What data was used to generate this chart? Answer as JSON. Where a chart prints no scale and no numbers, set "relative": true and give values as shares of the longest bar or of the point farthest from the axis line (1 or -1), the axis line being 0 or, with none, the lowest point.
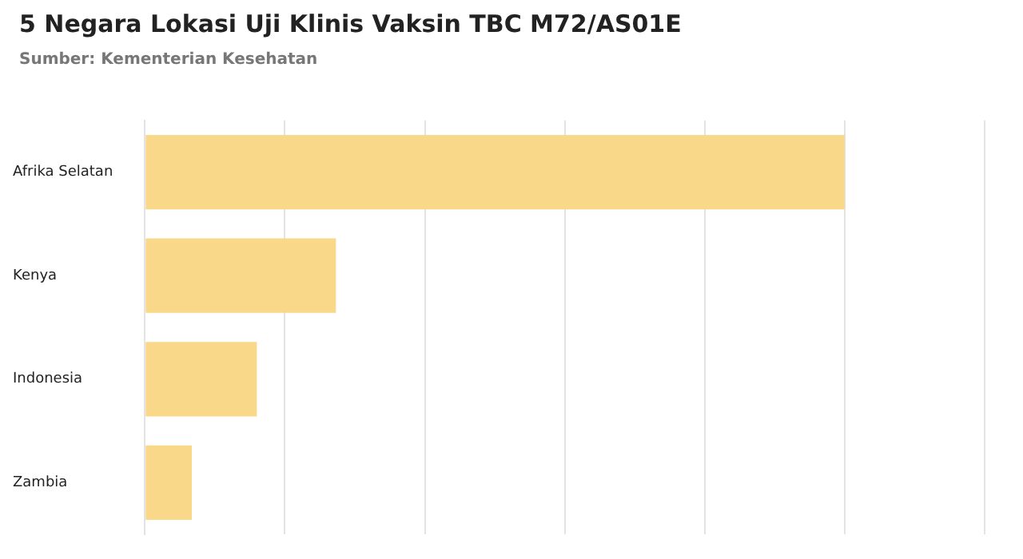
{
  "chart_data": {
    "type": "bar",
    "orientation": "horizontal",
    "relative": true,
    "title": "5 Negara Lokasi Uji Klinis Vaksin TBC M72/AS01E",
    "subtitle": "Sumber: Kementerian Kesehatan",
    "categories": [
      "Afrika Selatan",
      "Kenya",
      "Indonesia",
      "Zambia"
    ],
    "values": [
      1,
      0.273,
      0.16,
      0.067
    ],
    "color": "#f9d889",
    "grid": "x"
  }
}
